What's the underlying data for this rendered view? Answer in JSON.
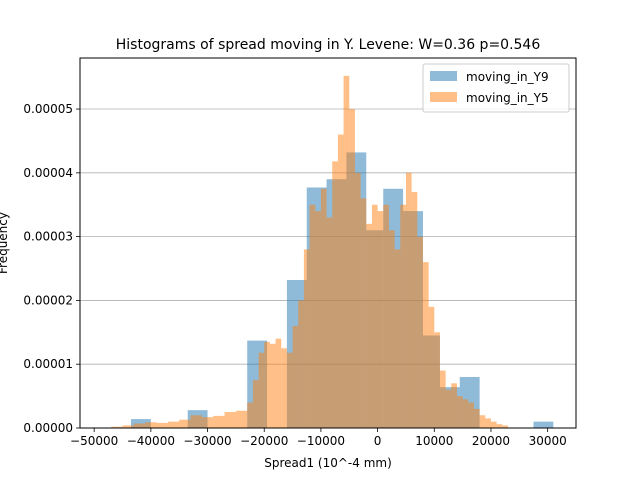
{
  "chart_data": {
    "type": "bar",
    "title": "Histograms of spread moving in Y. Levene: W=0.36 p=0.546",
    "xlabel": "Spread1 (10^-4 mm)",
    "ylabel": "Frequency",
    "xlim": [
      -52500,
      35000
    ],
    "ylim": [
      0,
      5.8e-05
    ],
    "xticks": [
      -50000,
      -40000,
      -30000,
      -20000,
      -10000,
      0,
      10000,
      20000,
      30000
    ],
    "xtick_labels": [
      "−50000",
      "−40000",
      "−30000",
      "−20000",
      "−10000",
      "0",
      "10000",
      "20000",
      "30000"
    ],
    "yticks": [
      0,
      1e-05,
      2e-05,
      3e-05,
      4e-05,
      5e-05
    ],
    "ytick_labels": [
      "0.00000",
      "0.00001",
      "0.00002",
      "0.00003",
      "0.00004",
      "0.00005"
    ],
    "grid": "y",
    "legend_position": "top-right",
    "series": [
      {
        "name": "moving_in_Y9",
        "color": "#1f77b4",
        "alpha": 0.5,
        "bins": [
          [
            -43500,
            -40000,
            1.4e-06
          ],
          [
            -33500,
            -30000,
            2.8e-06
          ],
          [
            -23000,
            -19500,
            1.37e-05
          ],
          [
            -16000,
            -12500,
            2.32e-05
          ],
          [
            -12500,
            -9000,
            3.77e-05
          ],
          [
            -9000,
            -5500,
            3.9e-05
          ],
          [
            -5500,
            -2000,
            4.32e-05
          ],
          [
            -2000,
            1000,
            3.1e-05
          ],
          [
            1000,
            4500,
            3.75e-05
          ],
          [
            4500,
            8000,
            3.4e-05
          ],
          [
            8000,
            11000,
            1.45e-05
          ],
          [
            11000,
            14500,
            6.4e-06
          ],
          [
            14500,
            18000,
            8e-06
          ],
          [
            27500,
            31000,
            1e-06
          ]
        ]
      },
      {
        "name": "moving_in_Y5",
        "color": "#ff7f0e",
        "alpha": 0.5,
        "bins": [
          [
            -47000,
            -45000,
            2e-07
          ],
          [
            -45000,
            -43000,
            4e-07
          ],
          [
            -43000,
            -41000,
            7e-07
          ],
          [
            -41000,
            -39000,
            9e-07
          ],
          [
            -39000,
            -37000,
            8e-07
          ],
          [
            -37000,
            -35000,
            1e-06
          ],
          [
            -35000,
            -33000,
            1.3e-06
          ],
          [
            -33000,
            -31000,
            2e-06
          ],
          [
            -31000,
            -29000,
            1.7e-06
          ],
          [
            -29000,
            -27000,
            1.9e-06
          ],
          [
            -27000,
            -25000,
            2.5e-06
          ],
          [
            -25000,
            -23000,
            2.7e-06
          ],
          [
            -23000,
            -22000,
            4e-06
          ],
          [
            -22000,
            -21000,
            7.5e-06
          ],
          [
            -21000,
            -20000,
            1.18e-05
          ],
          [
            -20000,
            -19000,
            1.35e-05
          ],
          [
            -19000,
            -18000,
            1.32e-05
          ],
          [
            -18000,
            -17000,
            1.4e-05
          ],
          [
            -17000,
            -16000,
            1.25e-05
          ],
          [
            -16000,
            -15000,
            1.18e-05
          ],
          [
            -15000,
            -14000,
            1.6e-05
          ],
          [
            -14000,
            -13000,
            2e-05
          ],
          [
            -13000,
            -12000,
            2.8e-05
          ],
          [
            -12000,
            -11000,
            3.5e-05
          ],
          [
            -11000,
            -10000,
            3.4e-05
          ],
          [
            -10000,
            -9000,
            3.75e-05
          ],
          [
            -9000,
            -8000,
            3.3e-05
          ],
          [
            -8000,
            -7000,
            4.18e-05
          ],
          [
            -7000,
            -6000,
            4.6e-05
          ],
          [
            -6000,
            -5000,
            5.52e-05
          ],
          [
            -5000,
            -4000,
            5e-05
          ],
          [
            -4000,
            -3000,
            4e-05
          ],
          [
            -3000,
            -2000,
            3.6e-05
          ],
          [
            -2000,
            -1000,
            3.2e-05
          ],
          [
            -1000,
            0,
            3.5e-05
          ],
          [
            0,
            1000,
            3.4e-05
          ],
          [
            1000,
            2000,
            3.5e-05
          ],
          [
            2000,
            3000,
            3.1e-05
          ],
          [
            3000,
            4000,
            2.8e-05
          ],
          [
            4000,
            5000,
            3.5e-05
          ],
          [
            5000,
            6000,
            4e-05
          ],
          [
            6000,
            7000,
            3.7e-05
          ],
          [
            7000,
            8000,
            3e-05
          ],
          [
            8000,
            9000,
            2.6e-05
          ],
          [
            9000,
            10000,
            1.9e-05
          ],
          [
            10000,
            11000,
            1.5e-05
          ],
          [
            11000,
            12000,
            9e-06
          ],
          [
            12000,
            13000,
            6e-06
          ],
          [
            13000,
            14000,
            7e-06
          ],
          [
            14000,
            15000,
            5e-06
          ],
          [
            15000,
            16000,
            4.5e-06
          ],
          [
            16000,
            17000,
            4e-06
          ],
          [
            17000,
            18000,
            3e-06
          ],
          [
            18000,
            19000,
            2e-06
          ],
          [
            19000,
            20000,
            1.5e-06
          ],
          [
            20000,
            21000,
            1e-06
          ],
          [
            21000,
            22000,
            6e-07
          ],
          [
            22000,
            23000,
            4e-07
          ]
        ]
      }
    ]
  }
}
